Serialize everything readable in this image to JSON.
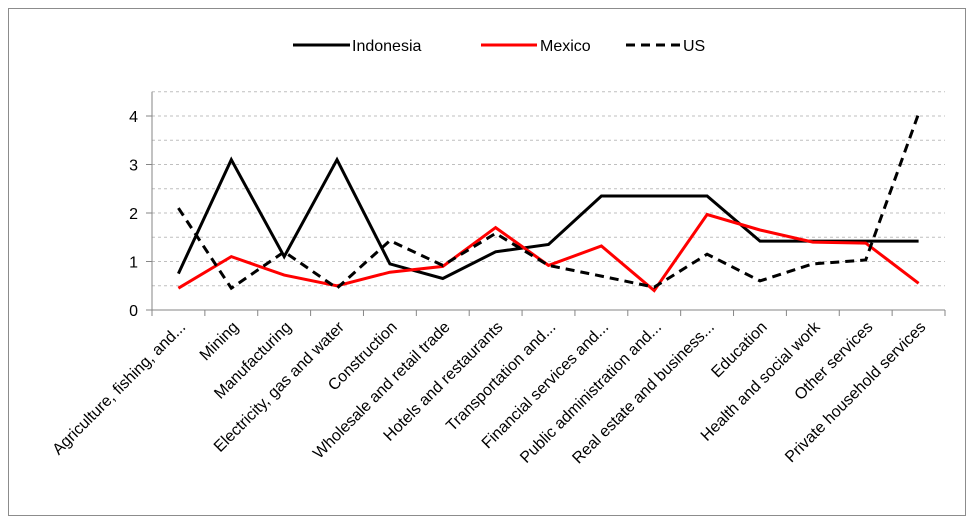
{
  "chart_data": {
    "type": "line",
    "categories": [
      "Agriculture, fishing, and...",
      "Mining",
      "Manufacturing",
      "Electricity, gas and water",
      "Construction",
      "Wholesale and retail trade",
      "Hotels and restaurants",
      "Transportation and...",
      "Financial services and...",
      "Public administration and...",
      "Real estate and business...",
      "Education",
      "Health and social work",
      "Other services",
      "Private household services"
    ],
    "series": [
      {
        "name": "Indonesia",
        "color": "#000000",
        "dash": "solid",
        "values": [
          0.75,
          3.1,
          1.1,
          3.1,
          0.95,
          0.65,
          1.2,
          1.35,
          2.35,
          2.35,
          2.35,
          1.42,
          1.42,
          1.42,
          1.42
        ]
      },
      {
        "name": "Mexico",
        "color": "#ff0000",
        "dash": "solid",
        "values": [
          0.45,
          1.1,
          0.72,
          0.5,
          0.78,
          0.9,
          1.7,
          0.92,
          1.32,
          0.4,
          1.97,
          1.65,
          1.4,
          1.38,
          0.55
        ]
      },
      {
        "name": "US",
        "color": "#000000",
        "dash": "dashed",
        "values": [
          2.1,
          0.45,
          1.2,
          0.45,
          1.43,
          0.92,
          1.58,
          0.92,
          0.7,
          0.47,
          1.15,
          0.6,
          0.95,
          1.03,
          4.05
        ]
      }
    ],
    "y_ticks": [
      "0",
      "1",
      "2",
      "3",
      "4"
    ],
    "ylim": [
      0,
      4.5
    ],
    "grid": "horizontal dashed gray",
    "legend_position": "top"
  }
}
